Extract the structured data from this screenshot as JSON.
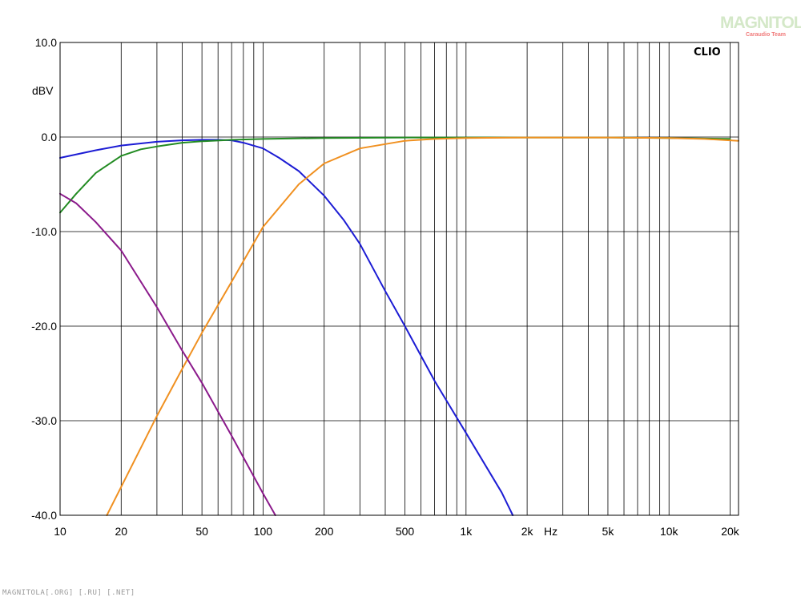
{
  "chart_data": {
    "type": "line",
    "x_scale": "log",
    "xlim": [
      10,
      22000
    ],
    "ylim": [
      -40,
      10
    ],
    "ylabel": "dBV",
    "xunit_label": "Hz",
    "watermark": "CLIO",
    "grid": true,
    "y_ticks": [
      10,
      0,
      -10,
      -20,
      -30,
      -40
    ],
    "y_tick_labels": [
      "10.0",
      "0.0",
      "-10.0",
      "-20.0",
      "-30.0",
      "-40.0"
    ],
    "x_tick_labels": [
      {
        "value": 10,
        "label": "10"
      },
      {
        "value": 20,
        "label": "20"
      },
      {
        "value": 50,
        "label": "50"
      },
      {
        "value": 100,
        "label": "100"
      },
      {
        "value": 200,
        "label": "200"
      },
      {
        "value": 500,
        "label": "500"
      },
      {
        "value": 1000,
        "label": "1k"
      },
      {
        "value": 2000,
        "label": "2k"
      },
      {
        "value": 5000,
        "label": "5k"
      },
      {
        "value": 10000,
        "label": "10k"
      },
      {
        "value": 20000,
        "label": "20k"
      }
    ],
    "series": [
      {
        "color": "#1c1cd4",
        "x": [
          10,
          15,
          20,
          30,
          40,
          50,
          60,
          70,
          80,
          100,
          120,
          150,
          200,
          250,
          300,
          400,
          500,
          700,
          1000,
          1500,
          1700
        ],
        "y": [
          -2.2,
          -1.4,
          -0.9,
          -0.5,
          -0.35,
          -0.3,
          -0.3,
          -0.35,
          -0.6,
          -1.2,
          -2.2,
          -3.6,
          -6.2,
          -8.8,
          -11.3,
          -16.3,
          -20.0,
          -25.8,
          -31.3,
          -37.6,
          -40.0
        ]
      },
      {
        "color": "#228b22",
        "x": [
          10,
          12,
          15,
          20,
          25,
          30,
          40,
          50,
          70,
          100,
          200,
          500,
          1000,
          2000,
          5000,
          10000,
          20000
        ],
        "y": [
          -8.0,
          -6.0,
          -3.8,
          -2.0,
          -1.3,
          -1.0,
          -0.6,
          -0.45,
          -0.3,
          -0.2,
          -0.1,
          -0.05,
          -0.05,
          -0.05,
          -0.05,
          -0.1,
          -0.2
        ]
      },
      {
        "color": "#f09020",
        "x": [
          17,
          20,
          30,
          40,
          50,
          70,
          100,
          150,
          200,
          300,
          500,
          700,
          1000,
          2000,
          5000,
          10000,
          15000,
          22000
        ],
        "y": [
          -40.0,
          -37.0,
          -29.5,
          -24.5,
          -20.7,
          -15.3,
          -9.5,
          -5.0,
          -2.8,
          -1.2,
          -0.4,
          -0.2,
          -0.1,
          -0.05,
          -0.05,
          -0.1,
          -0.2,
          -0.4
        ]
      },
      {
        "color": "#8b1a8b",
        "x": [
          10,
          12,
          15,
          20,
          30,
          40,
          50,
          70,
          100,
          115
        ],
        "y": [
          -6.0,
          -7.0,
          -9.0,
          -12.0,
          -18.0,
          -22.6,
          -26.0,
          -31.6,
          -37.7,
          -40.0
        ]
      }
    ]
  },
  "footer_text": "MAGNITOLA[.ORG] [.RU] [.NET]",
  "logo": {
    "main": "MAGNITOLA",
    "sub": "Caraudio Team"
  }
}
